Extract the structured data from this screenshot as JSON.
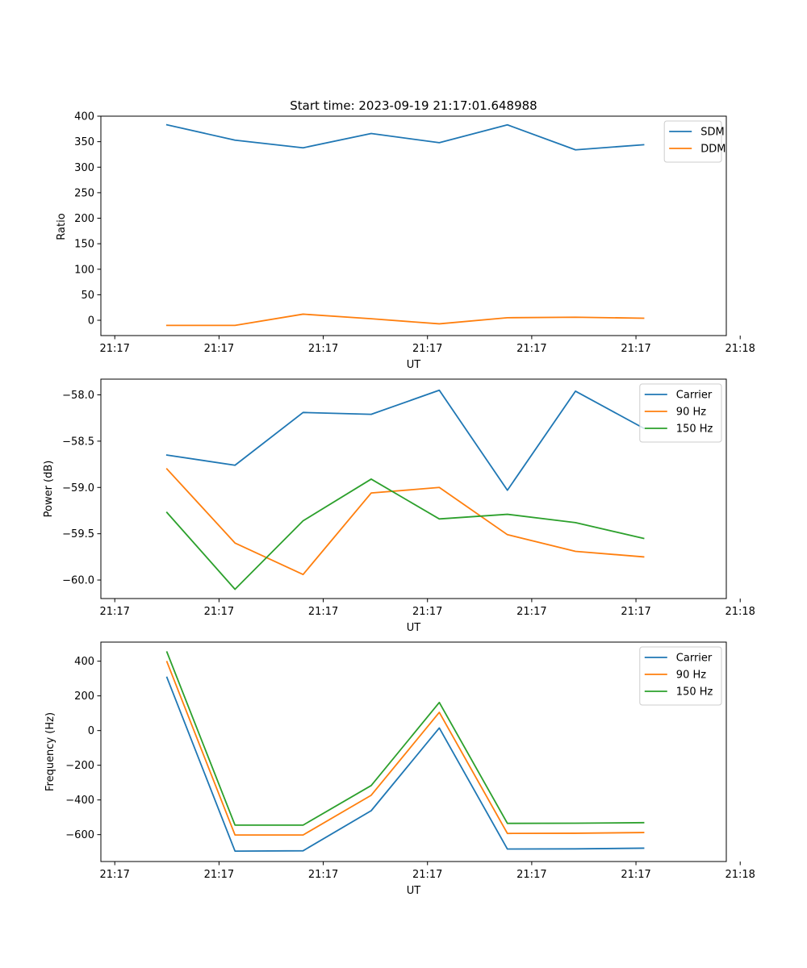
{
  "figure_title": "Start time: 2023-09-19 21:17:01.648988",
  "chart_data": [
    {
      "type": "line",
      "title": "Start time: 2023-09-19 21:17:01.648988",
      "xlabel": "UT",
      "ylabel": "Ratio",
      "xlim": [
        -0.2,
        8.8
      ],
      "ylim": [
        -30,
        400
      ],
      "x_ticks": [
        0,
        1.5,
        3,
        4.5,
        6,
        7.5,
        9
      ],
      "x_tick_labels": [
        "21:17",
        "21:17",
        "21:17",
        "21:17",
        "21:17",
        "21:17",
        "21:18"
      ],
      "y_ticks": [
        0,
        50,
        100,
        150,
        200,
        250,
        300,
        350,
        400
      ],
      "y_tick_labels": [
        "0",
        "50",
        "100",
        "150",
        "200",
        "250",
        "300",
        "350",
        "400"
      ],
      "x": [
        0.75,
        1.73,
        2.71,
        3.69,
        4.67,
        5.65,
        6.63,
        7.61
      ],
      "legend_position": "top-right",
      "series": [
        {
          "name": "SDM",
          "color": "#1f77b4",
          "values": [
            383,
            353,
            338,
            366,
            348,
            383,
            334,
            344
          ]
        },
        {
          "name": "DDM",
          "color": "#ff7f0e",
          "values": [
            -10,
            -10,
            12,
            3,
            -7,
            5,
            6,
            4
          ]
        }
      ]
    },
    {
      "type": "line",
      "title": "",
      "xlabel": "UT",
      "ylabel": "Power (dB)",
      "xlim": [
        -0.2,
        8.8
      ],
      "ylim": [
        -60.2,
        -57.83
      ],
      "x_ticks": [
        0,
        1.5,
        3,
        4.5,
        6,
        7.5,
        9
      ],
      "x_tick_labels": [
        "21:17",
        "21:17",
        "21:17",
        "21:17",
        "21:17",
        "21:17",
        "21:18"
      ],
      "y_ticks": [
        -60.0,
        -59.5,
        -59.0,
        -58.5,
        -58.0
      ],
      "y_tick_labels": [
        "−60.0",
        "−59.5",
        "−59.0",
        "−58.5",
        "−58.0"
      ],
      "x": [
        0.75,
        1.73,
        2.71,
        3.69,
        4.67,
        5.65,
        6.63,
        7.61
      ],
      "legend_position": "top-right",
      "series": [
        {
          "name": "Carrier",
          "color": "#1f77b4",
          "values": [
            -58.65,
            -58.76,
            -58.19,
            -58.21,
            -57.95,
            -59.03,
            -57.96,
            -58.36
          ]
        },
        {
          "name": "90 Hz",
          "color": "#ff7f0e",
          "values": [
            -58.8,
            -59.6,
            -59.94,
            -59.06,
            -59.0,
            -59.51,
            -59.69,
            -59.75
          ]
        },
        {
          "name": "150 Hz",
          "color": "#2ca02c",
          "values": [
            -59.27,
            -60.1,
            -59.36,
            -58.91,
            -59.34,
            -59.29,
            -59.38,
            -59.55
          ]
        }
      ]
    },
    {
      "type": "line",
      "title": "",
      "xlabel": "UT",
      "ylabel": "Frequency (Hz)",
      "xlim": [
        -0.2,
        8.8
      ],
      "ylim": [
        -755,
        510
      ],
      "x_ticks": [
        0,
        1.5,
        3,
        4.5,
        6,
        7.5,
        9
      ],
      "x_tick_labels": [
        "21:17",
        "21:17",
        "21:17",
        "21:17",
        "21:17",
        "21:17",
        "21:18"
      ],
      "y_ticks": [
        -600,
        -400,
        -200,
        0,
        200,
        400
      ],
      "y_tick_labels": [
        "−600",
        "−400",
        "−200",
        "0",
        "200",
        "400"
      ],
      "x": [
        0.75,
        1.73,
        2.71,
        3.69,
        4.67,
        5.65,
        6.63,
        7.61
      ],
      "legend_position": "top-right",
      "series": [
        {
          "name": "Carrier",
          "color": "#1f77b4",
          "values": [
            307,
            -695,
            -693,
            -462,
            15,
            -683,
            -682,
            -678
          ]
        },
        {
          "name": "90 Hz",
          "color": "#ff7f0e",
          "values": [
            397,
            -602,
            -602,
            -373,
            105,
            -593,
            -592,
            -588
          ]
        },
        {
          "name": "150 Hz",
          "color": "#2ca02c",
          "values": [
            453,
            -545,
            -545,
            -317,
            162,
            -535,
            -534,
            -531
          ]
        }
      ]
    }
  ]
}
